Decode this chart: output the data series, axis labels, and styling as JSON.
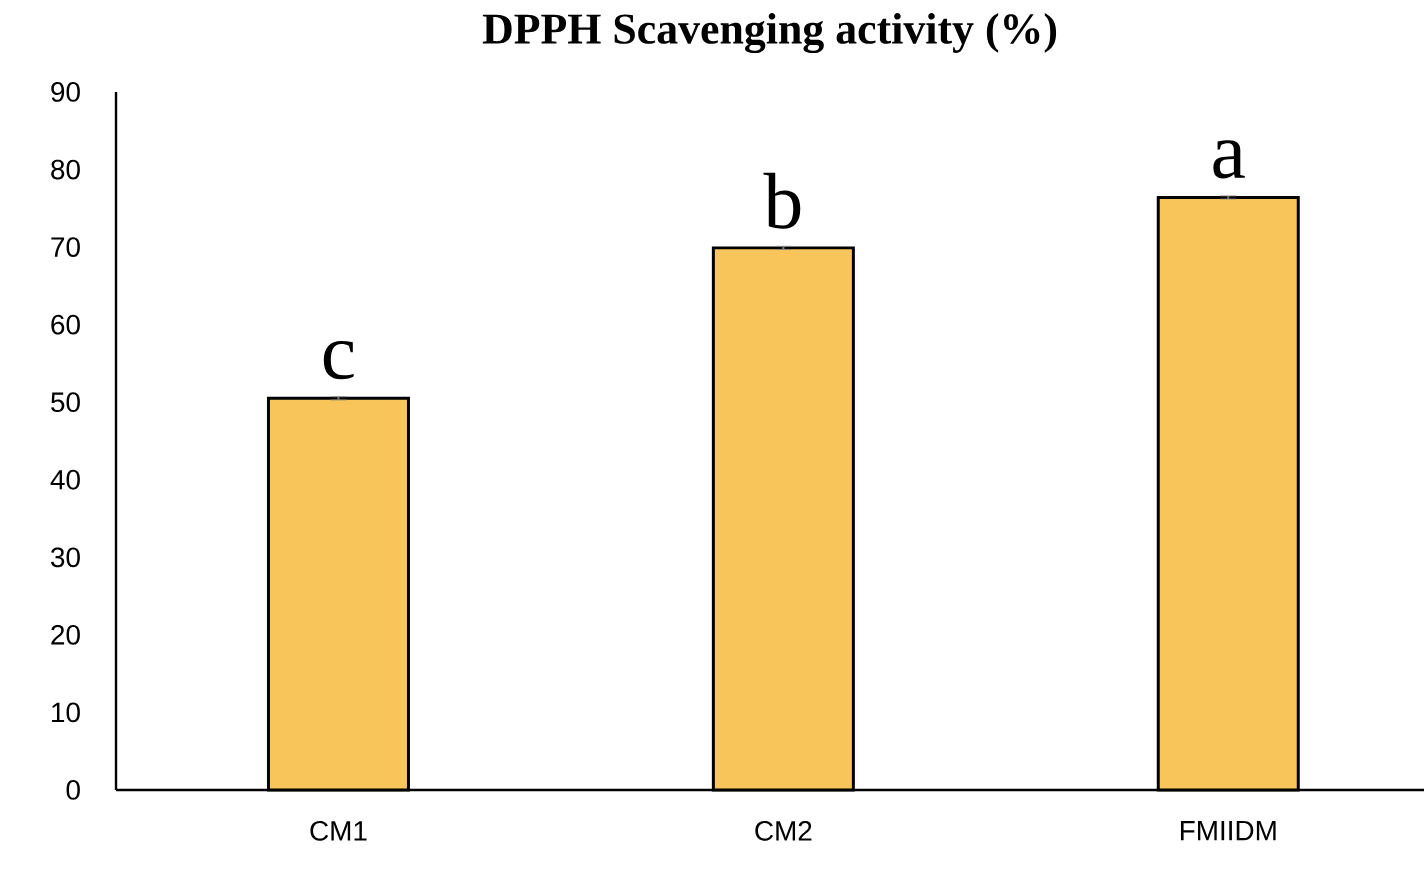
{
  "chart_data": {
    "type": "bar",
    "title": "DPPH Scavenging activity (%)",
    "categories": [
      "CM1",
      "CM2",
      "FMIIDM"
    ],
    "values": [
      50.5,
      69.9,
      76.4
    ],
    "errors": [
      0.2,
      0.2,
      0.2
    ],
    "color": "#f7c55a",
    "ylim": [
      0,
      90
    ],
    "yticks": [
      0,
      10,
      20,
      30,
      40,
      50,
      60,
      70,
      80,
      90
    ],
    "annotations": [
      "c",
      "b",
      "a"
    ]
  }
}
